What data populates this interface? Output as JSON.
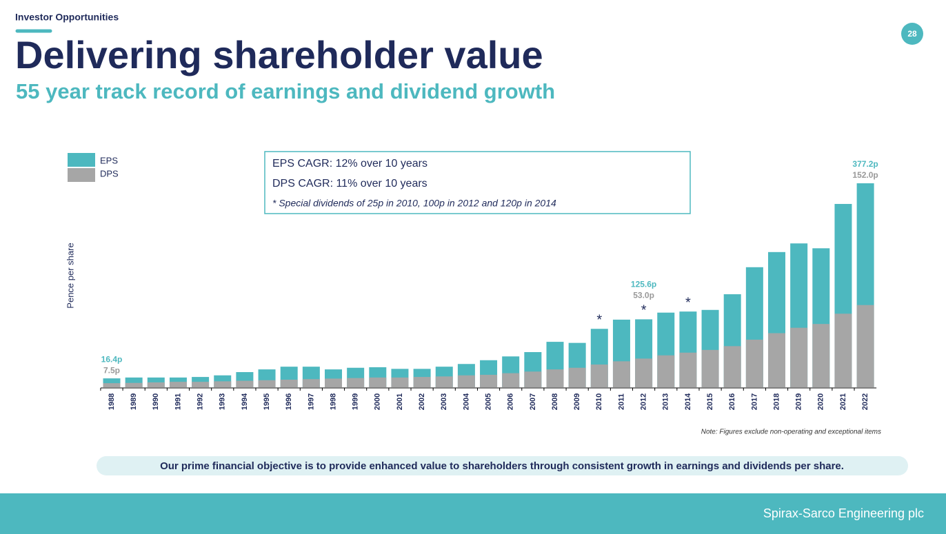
{
  "header": {
    "section": "Investor Opportunities",
    "page_number": "28",
    "title": "Delivering shareholder value",
    "subtitle": "55 year track record of earnings and dividend growth"
  },
  "chart_data": {
    "type": "overlay-bar",
    "y_label": "Pence per share",
    "categories": [
      "1988",
      "1989",
      "1990",
      "1991",
      "1992",
      "1993",
      "1994",
      "1995",
      "1996",
      "1997",
      "1998",
      "1999",
      "2000",
      "2001",
      "2002",
      "2003",
      "2004",
      "2005",
      "2006",
      "2007",
      "2008",
      "2009",
      "2010",
      "2011",
      "2012",
      "2013",
      "2014",
      "2015",
      "2016",
      "2017",
      "2018",
      "2019",
      "2020",
      "2021",
      "2022"
    ],
    "series": [
      {
        "name": "EPS",
        "color": "#4db8bf",
        "values": [
          16.4,
          18,
          18,
          18,
          19,
          22,
          28,
          33,
          38,
          38,
          33,
          36,
          37,
          34,
          34,
          38,
          43,
          50,
          57,
          65,
          84,
          82,
          108,
          125,
          125.6,
          138,
          140,
          143,
          172,
          222,
          250,
          266,
          257,
          339,
          377.2
        ],
        "value_labels": [
          "16.4p",
          null,
          null,
          null,
          null,
          null,
          null,
          null,
          null,
          null,
          null,
          null,
          null,
          null,
          null,
          null,
          null,
          null,
          null,
          null,
          null,
          null,
          null,
          null,
          "125.6p",
          null,
          null,
          null,
          null,
          null,
          null,
          null,
          null,
          null,
          "377.2p"
        ]
      },
      {
        "name": "DPS",
        "color": "#a6a6a6",
        "values": [
          7.5,
          8,
          9,
          10,
          10,
          11,
          12,
          13,
          14,
          15,
          16,
          17,
          18,
          18,
          19,
          20,
          22,
          23,
          26,
          29,
          33,
          36,
          42,
          48,
          53.0,
          59,
          64,
          69,
          76,
          88,
          100,
          110,
          117,
          136,
          152.0
        ],
        "value_labels": [
          "7.5p",
          null,
          null,
          null,
          null,
          null,
          null,
          null,
          null,
          null,
          null,
          null,
          null,
          null,
          null,
          null,
          null,
          null,
          null,
          null,
          null,
          null,
          null,
          null,
          "53.0p",
          null,
          null,
          null,
          null,
          null,
          null,
          null,
          null,
          null,
          "152.0p"
        ]
      }
    ],
    "annotations": [
      {
        "text": "*",
        "x": "2010"
      },
      {
        "text": "*",
        "x": "2012"
      },
      {
        "text": "*",
        "x": "2014"
      }
    ],
    "legend": "top-left"
  },
  "info_box": [
    "EPS CAGR: 12% over 10 years",
    "DPS CAGR: 11% over 10 years",
    "* Special dividends of 25p in 2010, 100p in 2012 and 120p in 2014"
  ],
  "note": "Note: Figures exclude non-operating and exceptional items",
  "objective": "Our prime financial objective is to provide enhanced value to shareholders through consistent growth in earnings and dividends per share.",
  "footer": "Spirax-Sarco Engineering plc"
}
